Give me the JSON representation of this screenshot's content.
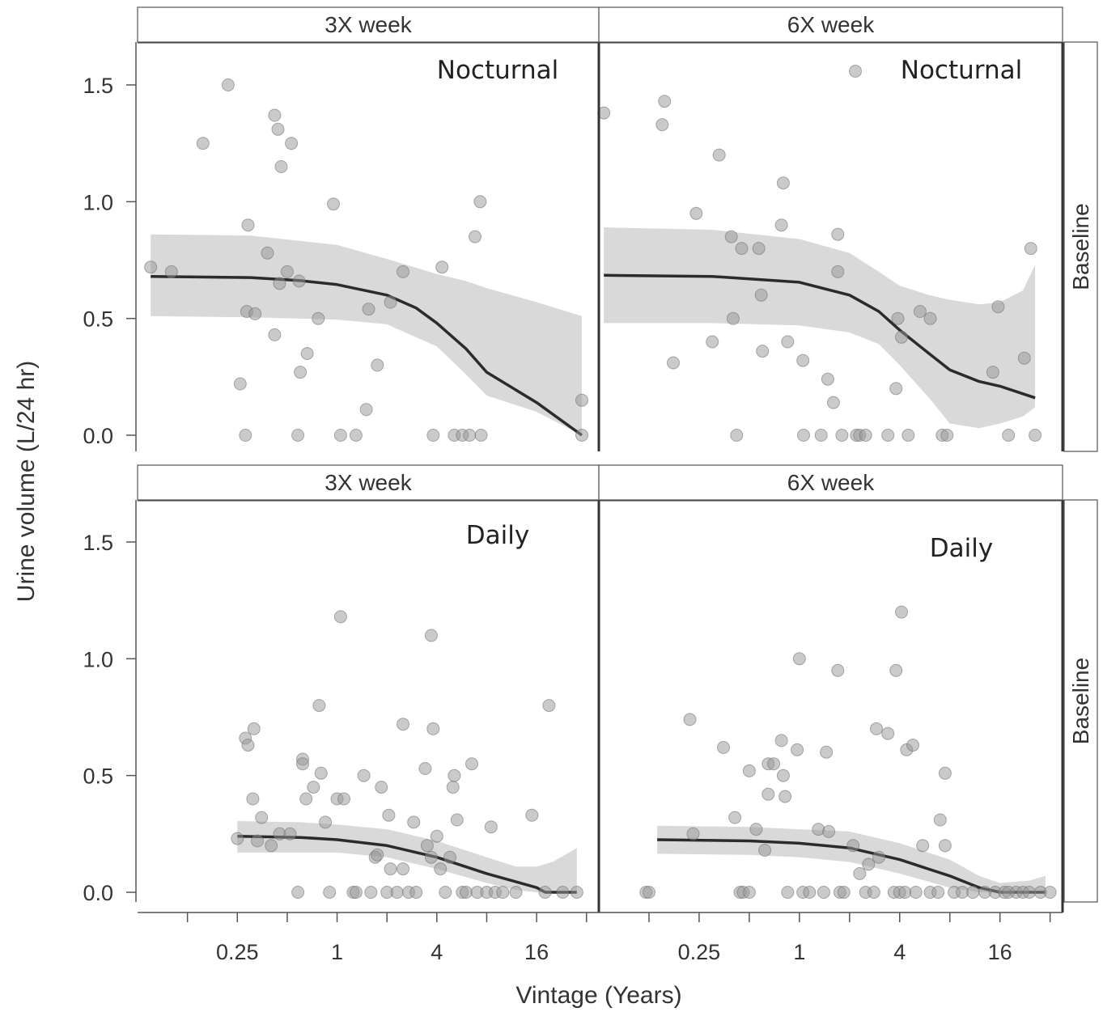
{
  "chart_data": {
    "type": "scatter",
    "xlabel": "Vintage (Years)",
    "ylabel": "Urine volume (L/24 hr)",
    "x_scale": "log2",
    "xlim": [
      0.0625,
      38
    ],
    "ylim": [
      -0.07,
      1.73
    ],
    "x_ticks": [
      0.25,
      1,
      4,
      16
    ],
    "x_tick_labels": [
      "0.25",
      "1",
      "4",
      "16"
    ],
    "y_ticks": [
      0,
      0.5,
      1,
      1.5
    ],
    "y_tick_labels": [
      "0.0",
      "0.5",
      "1.0",
      "1.5"
    ],
    "row_strip": "Baseline",
    "legend": "top-right of upper-right panel (marker only)",
    "panels": [
      {
        "col_label": "3X week",
        "row_label": "Baseline",
        "label": "Nocturnal",
        "points": [
          [
            0.075,
            0.72
          ],
          [
            0.1,
            0.7
          ],
          [
            0.155,
            1.25
          ],
          [
            0.22,
            1.5
          ],
          [
            0.26,
            0.22
          ],
          [
            0.28,
            0
          ],
          [
            0.285,
            0.53
          ],
          [
            0.29,
            0.9
          ],
          [
            0.32,
            0.52
          ],
          [
            0.38,
            0.78
          ],
          [
            0.42,
            0.43
          ],
          [
            0.42,
            1.37
          ],
          [
            0.44,
            1.31
          ],
          [
            0.45,
            0.65
          ],
          [
            0.46,
            1.15
          ],
          [
            0.5,
            0.7
          ],
          [
            0.53,
            1.25
          ],
          [
            0.58,
            0
          ],
          [
            0.59,
            0.66
          ],
          [
            0.6,
            0.27
          ],
          [
            0.66,
            0.35
          ],
          [
            0.77,
            0.5
          ],
          [
            0.95,
            0.99
          ],
          [
            1.05,
            0
          ],
          [
            1.3,
            0
          ],
          [
            1.5,
            0.11
          ],
          [
            1.55,
            0.54
          ],
          [
            1.75,
            0.3
          ],
          [
            2.1,
            0.57
          ],
          [
            2.5,
            0.7
          ],
          [
            3.8,
            0
          ],
          [
            4.3,
            0.72
          ],
          [
            5.1,
            0
          ],
          [
            5.7,
            0
          ],
          [
            6.3,
            0
          ],
          [
            6.8,
            0.85
          ],
          [
            7.3,
            1.0
          ],
          [
            7.4,
            0
          ],
          [
            30,
            0.15
          ],
          [
            30,
            0
          ]
        ],
        "fit": [
          [
            0.075,
            0.68
          ],
          [
            0.3,
            0.675
          ],
          [
            0.6,
            0.662
          ],
          [
            1,
            0.645
          ],
          [
            2,
            0.6
          ],
          [
            3,
            0.545
          ],
          [
            4,
            0.48
          ],
          [
            6,
            0.37
          ],
          [
            8,
            0.27
          ],
          [
            16,
            0.14
          ],
          [
            30,
            0
          ]
        ],
        "band": [
          [
            0.075,
            0.51,
            0.86
          ],
          [
            0.3,
            0.505,
            0.855
          ],
          [
            1,
            0.495,
            0.815
          ],
          [
            2,
            0.475,
            0.755
          ],
          [
            4,
            0.38,
            0.69
          ],
          [
            6,
            0.26,
            0.66
          ],
          [
            8,
            0.17,
            0.63
          ],
          [
            16,
            0.1,
            0.57
          ],
          [
            30,
            0,
            0.51
          ]
        ]
      },
      {
        "col_label": "6X week",
        "row_label": "Baseline",
        "label": "Nocturnal",
        "points": [
          [
            0.067,
            1.38
          ],
          [
            0.15,
            1.33
          ],
          [
            0.155,
            1.43
          ],
          [
            0.175,
            0.31
          ],
          [
            0.24,
            0.95
          ],
          [
            0.3,
            0.4
          ],
          [
            0.33,
            1.2
          ],
          [
            0.39,
            0.85
          ],
          [
            0.4,
            0.5
          ],
          [
            0.42,
            0
          ],
          [
            0.45,
            0.8
          ],
          [
            0.57,
            0.8
          ],
          [
            0.59,
            0.6
          ],
          [
            0.6,
            0.36
          ],
          [
            0.78,
            0.9
          ],
          [
            0.8,
            1.08
          ],
          [
            0.85,
            0.4
          ],
          [
            1.05,
            0.32
          ],
          [
            1.06,
            0
          ],
          [
            1.35,
            0
          ],
          [
            1.48,
            0.24
          ],
          [
            1.6,
            0.14
          ],
          [
            1.7,
            0.86
          ],
          [
            1.7,
            0.7
          ],
          [
            1.8,
            0
          ],
          [
            2.2,
            0
          ],
          [
            2.3,
            0
          ],
          [
            2.5,
            0
          ],
          [
            3.4,
            0
          ],
          [
            3.8,
            0.2
          ],
          [
            3.9,
            0.5
          ],
          [
            4.1,
            0.42
          ],
          [
            4.5,
            0
          ],
          [
            5.3,
            0.53
          ],
          [
            6.1,
            0.5
          ],
          [
            7.2,
            0
          ],
          [
            7.7,
            0
          ],
          [
            14.5,
            0.27
          ],
          [
            15.6,
            0.55
          ],
          [
            18,
            0
          ],
          [
            22.4,
            0.33
          ],
          [
            24.5,
            0.8
          ],
          [
            26,
            0
          ]
        ],
        "fit": [
          [
            0.067,
            0.685
          ],
          [
            0.3,
            0.68
          ],
          [
            1,
            0.655
          ],
          [
            2,
            0.6
          ],
          [
            3,
            0.53
          ],
          [
            4,
            0.45
          ],
          [
            6,
            0.35
          ],
          [
            8,
            0.28
          ],
          [
            12,
            0.23
          ],
          [
            16,
            0.21
          ],
          [
            26,
            0.16
          ]
        ],
        "band": [
          [
            0.067,
            0.48,
            0.89
          ],
          [
            0.3,
            0.48,
            0.88
          ],
          [
            1,
            0.47,
            0.84
          ],
          [
            2,
            0.44,
            0.78
          ],
          [
            3,
            0.39,
            0.7
          ],
          [
            4,
            0.3,
            0.64
          ],
          [
            6,
            0.16,
            0.6
          ],
          [
            8,
            0.05,
            0.58
          ],
          [
            12,
            0.03,
            0.56
          ],
          [
            16,
            0.05,
            0.57
          ],
          [
            22,
            0.08,
            0.62
          ],
          [
            26,
            0.12,
            0.73
          ]
        ]
      },
      {
        "col_label": "3X week",
        "row_label": "Baseline",
        "label": "Daily",
        "points": [
          [
            0.25,
            0.23
          ],
          [
            0.28,
            0.66
          ],
          [
            0.29,
            0.63
          ],
          [
            0.31,
            0.4
          ],
          [
            0.315,
            0.7
          ],
          [
            0.33,
            0.22
          ],
          [
            0.35,
            0.32
          ],
          [
            0.4,
            0.2
          ],
          [
            0.45,
            0.25
          ],
          [
            0.52,
            0.25
          ],
          [
            0.58,
            0
          ],
          [
            0.62,
            0.57
          ],
          [
            0.62,
            0.55
          ],
          [
            0.65,
            0.4
          ],
          [
            0.72,
            0.45
          ],
          [
            0.78,
            0.8
          ],
          [
            0.8,
            0.51
          ],
          [
            0.85,
            0.3
          ],
          [
            0.9,
            0
          ],
          [
            1,
            0.4
          ],
          [
            1.05,
            1.18
          ],
          [
            1.1,
            0.4
          ],
          [
            1.25,
            0
          ],
          [
            1.3,
            0
          ],
          [
            1.45,
            0.5
          ],
          [
            1.6,
            0
          ],
          [
            1.7,
            0.15
          ],
          [
            1.75,
            0.16
          ],
          [
            1.85,
            0.45
          ],
          [
            2,
            0
          ],
          [
            2.05,
            0.33
          ],
          [
            2.1,
            0.1
          ],
          [
            2.3,
            0
          ],
          [
            2.5,
            0.1
          ],
          [
            2.5,
            0.72
          ],
          [
            2.7,
            0
          ],
          [
            2.9,
            0.3
          ],
          [
            3,
            0
          ],
          [
            3.4,
            0.53
          ],
          [
            3.5,
            0.2
          ],
          [
            3.7,
            0.15
          ],
          [
            3.7,
            1.1
          ],
          [
            3.8,
            0.7
          ],
          [
            4,
            0.24
          ],
          [
            4.2,
            0.1
          ],
          [
            4.5,
            0
          ],
          [
            4.8,
            0.15
          ],
          [
            5,
            0.45
          ],
          [
            5.1,
            0.5
          ],
          [
            5.3,
            0.31
          ],
          [
            5.7,
            0
          ],
          [
            6,
            0
          ],
          [
            6.5,
            0.55
          ],
          [
            7,
            0
          ],
          [
            8,
            0
          ],
          [
            8.5,
            0.28
          ],
          [
            9,
            0
          ],
          [
            10,
            0
          ],
          [
            12,
            0
          ],
          [
            15,
            0.33
          ],
          [
            18,
            0
          ],
          [
            19,
            0.8
          ],
          [
            23,
            0
          ],
          [
            28,
            0
          ]
        ],
        "fit": [
          [
            0.25,
            0.24
          ],
          [
            0.6,
            0.235
          ],
          [
            1,
            0.225
          ],
          [
            2,
            0.2
          ],
          [
            4,
            0.15
          ],
          [
            8,
            0.08
          ],
          [
            16,
            0.02
          ],
          [
            18,
            0
          ],
          [
            28,
            0
          ]
        ],
        "band": [
          [
            0.25,
            0.17,
            0.305
          ],
          [
            0.6,
            0.17,
            0.3
          ],
          [
            1,
            0.17,
            0.29
          ],
          [
            2,
            0.15,
            0.27
          ],
          [
            4,
            0.1,
            0.22
          ],
          [
            8,
            0.04,
            0.15
          ],
          [
            12,
            0.01,
            0.11
          ],
          [
            16,
            0,
            0.11
          ],
          [
            20,
            0,
            0.13
          ],
          [
            28,
            0,
            0.19
          ]
        ]
      },
      {
        "col_label": "6X week",
        "row_label": "Baseline",
        "label": "Daily",
        "points": [
          [
            0.12,
            0
          ],
          [
            0.125,
            0
          ],
          [
            0.22,
            0.74
          ],
          [
            0.23,
            0.25
          ],
          [
            0.35,
            0.62
          ],
          [
            0.41,
            0.32
          ],
          [
            0.44,
            0
          ],
          [
            0.46,
            0
          ],
          [
            0.5,
            0.52
          ],
          [
            0.5,
            0
          ],
          [
            0.55,
            0.27
          ],
          [
            0.62,
            0.18
          ],
          [
            0.65,
            0.55
          ],
          [
            0.65,
            0.42
          ],
          [
            0.7,
            0.55
          ],
          [
            0.78,
            0.65
          ],
          [
            0.8,
            0.5
          ],
          [
            0.82,
            0.41
          ],
          [
            0.85,
            0
          ],
          [
            0.97,
            0.61
          ],
          [
            1,
            1
          ],
          [
            1.05,
            0
          ],
          [
            1.15,
            0
          ],
          [
            1.3,
            0.27
          ],
          [
            1.4,
            0
          ],
          [
            1.45,
            0.6
          ],
          [
            1.5,
            0.26
          ],
          [
            1.7,
            0.95
          ],
          [
            1.75,
            0
          ],
          [
            1.85,
            0
          ],
          [
            2.1,
            0.2
          ],
          [
            2.3,
            0.08
          ],
          [
            2.5,
            0
          ],
          [
            2.6,
            0.12
          ],
          [
            2.8,
            0
          ],
          [
            2.9,
            0.7
          ],
          [
            3,
            0.15
          ],
          [
            3.4,
            0.68
          ],
          [
            3.7,
            0
          ],
          [
            3.8,
            0.95
          ],
          [
            4,
            0
          ],
          [
            4.1,
            1.2
          ],
          [
            4.3,
            0
          ],
          [
            4.4,
            0.61
          ],
          [
            4.8,
            0.63
          ],
          [
            5,
            0
          ],
          [
            5.5,
            0.2
          ],
          [
            6.1,
            0
          ],
          [
            6.8,
            0
          ],
          [
            7,
            0.31
          ],
          [
            7.5,
            0.51
          ],
          [
            7.5,
            0.2
          ],
          [
            8.5,
            0
          ],
          [
            9.5,
            0
          ],
          [
            11,
            0
          ],
          [
            13,
            0
          ],
          [
            15,
            0
          ],
          [
            17,
            0
          ],
          [
            18,
            0
          ],
          [
            20,
            0
          ],
          [
            22,
            0
          ],
          [
            24,
            0
          ],
          [
            28,
            0
          ],
          [
            32,
            0
          ]
        ],
        "fit": [
          [
            0.14,
            0.225
          ],
          [
            0.5,
            0.22
          ],
          [
            1,
            0.21
          ],
          [
            2,
            0.19
          ],
          [
            4,
            0.14
          ],
          [
            8,
            0.07
          ],
          [
            12,
            0.02
          ],
          [
            16,
            0
          ],
          [
            30,
            0
          ]
        ],
        "band": [
          [
            0.14,
            0.165,
            0.285
          ],
          [
            0.5,
            0.16,
            0.28
          ],
          [
            1,
            0.15,
            0.27
          ],
          [
            2,
            0.13,
            0.26
          ],
          [
            4,
            0.08,
            0.21
          ],
          [
            8,
            0.02,
            0.14
          ],
          [
            12,
            0,
            0.07
          ],
          [
            16,
            0,
            0.04
          ],
          [
            24,
            0,
            0.05
          ],
          [
            30,
            0,
            0.07
          ]
        ]
      }
    ]
  }
}
